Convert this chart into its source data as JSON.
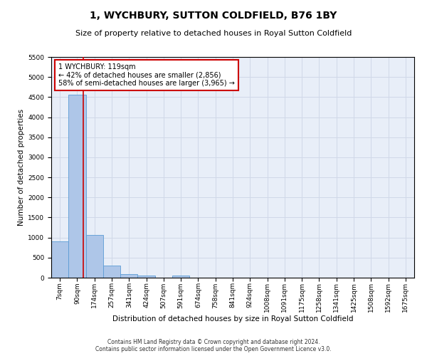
{
  "title": "1, WYCHBURY, SUTTON COLDFIELD, B76 1BY",
  "subtitle": "Size of property relative to detached houses in Royal Sutton Coldfield",
  "xlabel": "Distribution of detached houses by size in Royal Sutton Coldfield",
  "ylabel": "Number of detached properties",
  "footer_line1": "Contains HM Land Registry data © Crown copyright and database right 2024.",
  "footer_line2": "Contains public sector information licensed under the Open Government Licence v3.0.",
  "bar_labels": [
    "7sqm",
    "90sqm",
    "174sqm",
    "257sqm",
    "341sqm",
    "424sqm",
    "507sqm",
    "591sqm",
    "674sqm",
    "758sqm",
    "841sqm",
    "924sqm",
    "1008sqm",
    "1091sqm",
    "1175sqm",
    "1258sqm",
    "1341sqm",
    "1425sqm",
    "1508sqm",
    "1592sqm",
    "1675sqm"
  ],
  "bar_values": [
    900,
    4560,
    1070,
    300,
    80,
    60,
    0,
    60,
    0,
    0,
    0,
    0,
    0,
    0,
    0,
    0,
    0,
    0,
    0,
    0,
    0
  ],
  "bar_color": "#aec6e8",
  "bar_edge_color": "#5b9bd5",
  "annotation_line1": "1 WYCHBURY: 119sqm",
  "annotation_line2": "← 42% of detached houses are smaller (2,856)",
  "annotation_line3": "58% of semi-detached houses are larger (3,965) →",
  "vline_color": "#cc0000",
  "vline_x_index": 1.35,
  "annotation_box_color": "#ffffff",
  "annotation_box_edge_color": "#cc0000",
  "ylim": [
    0,
    5500
  ],
  "yticks": [
    0,
    500,
    1000,
    1500,
    2000,
    2500,
    3000,
    3500,
    4000,
    4500,
    5000,
    5500
  ],
  "grid_color": "#d0d8e8",
  "background_color": "#e8eef8",
  "title_fontsize": 10,
  "subtitle_fontsize": 8,
  "axis_label_fontsize": 7.5,
  "tick_fontsize": 6.5,
  "annotation_fontsize": 7,
  "footer_fontsize": 5.5
}
